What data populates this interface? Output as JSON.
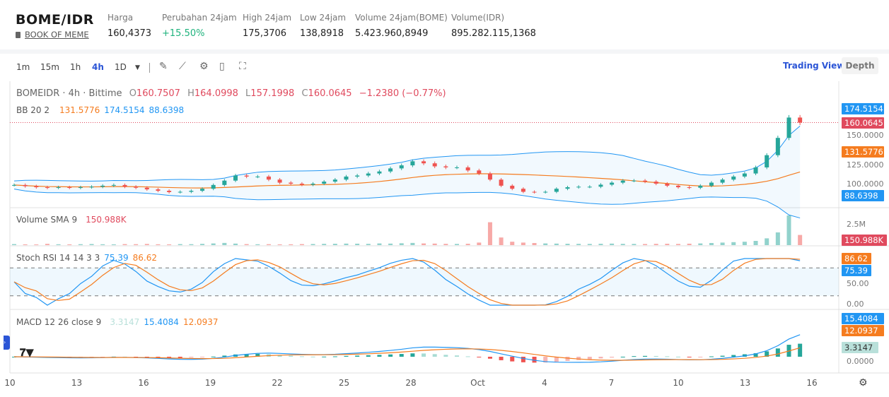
{
  "header": {
    "pair": "BOME/IDR",
    "coin_name": "BOOK OF MEME",
    "stats": [
      {
        "label": "Harga",
        "value": "160,4373"
      },
      {
        "label": "Perubahan 24jam",
        "value": "+15.50%"
      },
      {
        "label": "High 24jam",
        "value": "175,3706"
      },
      {
        "label": "Low 24jam",
        "value": "138,8918"
      },
      {
        "label": "Volume 24jam(BOME)",
        "value": "5.423.960,8949"
      },
      {
        "label": "Volume(IDR)",
        "value": "895.282.115,1368"
      }
    ]
  },
  "toolbar": {
    "timeframes": [
      "1m",
      "15m",
      "1h",
      "4h",
      "1D"
    ],
    "active": "4h",
    "icons": [
      "pencil-icon",
      "indicator-icon",
      "gear-icon",
      "save-icon",
      "fullscreen-icon"
    ],
    "trading_view": "Trading View",
    "depth": "Depth"
  },
  "legend": {
    "symbol": "BOMEIDR · 4h · Bittime",
    "o_label": "O",
    "open": "160.7507",
    "h_label": "H",
    "high": "164.0998",
    "l_label": "L",
    "low": "157.1998",
    "c_label": "C",
    "close": "160.0645",
    "change": "−1.2380 (−0.77%)",
    "bb": "BB 20 2",
    "bb_mid": "131.5776",
    "bb_up": "174.5154",
    "bb_low": "88.6398",
    "vol": "Volume SMA 9",
    "vol_val": "150.988K",
    "stoch": "Stoch RSI 14 14 3 3",
    "stoch_k": "75.39",
    "stoch_d": "86.62",
    "macd": "MACD 12 26 close 9",
    "macd_hist": "3.3147",
    "macd_line": "15.4084",
    "macd_signal": "12.0937"
  },
  "axis": {
    "price": [
      "150.0000",
      "125.0000",
      "100.0000"
    ],
    "volume": "2.5M",
    "stoch": [
      "50.00",
      "0.00"
    ],
    "macd": "0.0000",
    "tags": {
      "upper": "174.5154",
      "last": "160.0645",
      "mid": "131.5776",
      "lower": "88.6398",
      "vol": "150.988K",
      "d": "86.62",
      "k": "75.39",
      "macd": "15.4084",
      "signal": "12.0937",
      "hist": "3.3147"
    },
    "dates": [
      "10",
      "13",
      "16",
      "19",
      "22",
      "25",
      "28",
      "Oct",
      "4",
      "7",
      "10",
      "13",
      "16"
    ]
  },
  "colors": {
    "up": "#26a69a",
    "down": "#ef5350",
    "bb_mid": "#f57c1f",
    "bb_band": "#2196f3",
    "k": "#2196f3",
    "d": "#f57c1f",
    "accent": "#2b55d6"
  },
  "chart_data": {
    "type": "candlestick",
    "interval": "12h (approx.)",
    "closes": [
      98.7,
      97.5,
      96.5,
      96,
      96.5,
      96,
      96.5,
      97,
      98,
      98.7,
      97,
      96,
      94.4,
      93,
      91.7,
      92,
      93,
      95,
      98.7,
      103,
      108,
      107,
      107,
      104,
      101,
      100,
      99,
      100,
      102,
      104,
      107,
      108,
      110,
      112,
      115,
      118,
      122,
      120,
      117,
      116,
      116,
      113,
      110,
      104,
      98,
      95,
      92,
      91.7,
      92,
      95,
      96.5,
      97,
      97,
      99,
      101,
      103,
      103,
      102,
      100,
      98,
      96.5,
      96,
      98,
      101,
      104,
      107,
      110,
      116,
      128,
      145,
      165,
      160
    ],
    "volumes_k": [
      120,
      90,
      80,
      150,
      100,
      90,
      110,
      130,
      100,
      90,
      120,
      110,
      140,
      100,
      90,
      120,
      110,
      150,
      200,
      260,
      180,
      120,
      100,
      110,
      90,
      100,
      120,
      130,
      150,
      160,
      180,
      170,
      150,
      200,
      180,
      220,
      260,
      200,
      180,
      150,
      140,
      160,
      300,
      2700,
      900,
      400,
      300,
      250,
      200,
      180,
      160,
      150,
      140,
      160,
      180,
      150,
      140,
      130,
      150,
      160,
      140,
      170,
      200,
      250,
      300,
      350,
      400,
      500,
      800,
      1500,
      3500,
      1200
    ]
  }
}
